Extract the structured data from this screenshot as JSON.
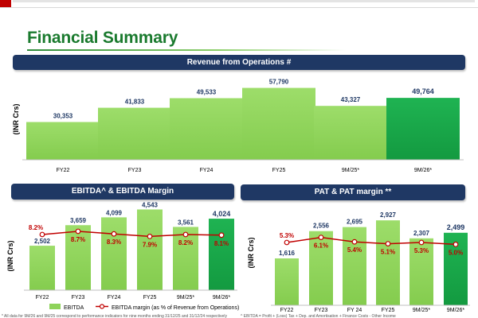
{
  "page": {
    "title": "Financial Summary"
  },
  "chart_data": [
    {
      "type": "bar",
      "title": "Revenue from Operations #",
      "ylabel": "(INR Crs)",
      "categories": [
        "FY22",
        "FY23",
        "FY24",
        "FY25",
        "9M/25*",
        "9M/26*"
      ],
      "values": [
        30353,
        41833,
        49533,
        57790,
        43327,
        49764
      ],
      "value_labels": [
        "30,353",
        "41,833",
        "49,533",
        "57,790",
        "43,327",
        "49,764"
      ],
      "highlight_index": 5,
      "colors": {
        "bar": "#8ed35a",
        "highlight": "#19a64a"
      }
    },
    {
      "type": "bar",
      "title": "EBITDA^ & EBITDA Margin",
      "ylabel": "(INR Crs)",
      "categories": [
        "FY22",
        "FY23",
        "FY24",
        "FY25",
        "9M/25*",
        "9M/26*"
      ],
      "series": [
        {
          "name": "EBITDA",
          "values": [
            2502,
            3659,
            4099,
            4543,
            3561,
            4024
          ],
          "labels": [
            "2,502",
            "3,659",
            "4,099",
            "4,543",
            "3,561",
            "4,024"
          ]
        },
        {
          "name": "EBITDA margin (as % of Revenue from Operations)",
          "type": "line",
          "values": [
            8.2,
            8.7,
            8.3,
            7.9,
            8.2,
            8.1
          ],
          "labels": [
            "8.2%",
            "8.7%",
            "8.3%",
            "7.9%",
            "8.2%",
            "8.1%"
          ]
        }
      ],
      "highlight_index": 5,
      "legend": [
        "EBITDA",
        "EBITDA margin (as % of Revenue from Operations)"
      ]
    },
    {
      "type": "bar",
      "title": "PAT & PAT margin **",
      "ylabel": "(INR Crs)",
      "categories": [
        "FY22",
        "FY23",
        "FY 24",
        "FY25",
        "9M/25*",
        "9M/26*"
      ],
      "series": [
        {
          "name": "PAT",
          "values": [
            1616,
            2556,
            2695,
            2927,
            2307,
            2499
          ],
          "labels": [
            "1,616",
            "2,556",
            "2,695",
            "2,927",
            "2,307",
            "2,499"
          ]
        },
        {
          "name": "PAT margin",
          "type": "line",
          "values": [
            5.3,
            6.1,
            5.4,
            5.1,
            5.3,
            5.0
          ],
          "labels": [
            "5.3%",
            "6.1%",
            "5.4%",
            "5.1%",
            "5.3%",
            "5.0%"
          ]
        }
      ],
      "highlight_index": 5
    }
  ],
  "colors": {
    "banner": "#1f3864",
    "title": "#1a7a2e",
    "margin_line": "#c00000"
  },
  "footnotes": {
    "left": "* All data for 9M/26 and 9M/25 correspond to performance indicators for nine months ending 31/12/25 and 31/12/24 respectively",
    "right": "^ EBITDA = Profit + (Loss) Tax + Dep. and Amortisation + Finance Costs - Other Income"
  }
}
